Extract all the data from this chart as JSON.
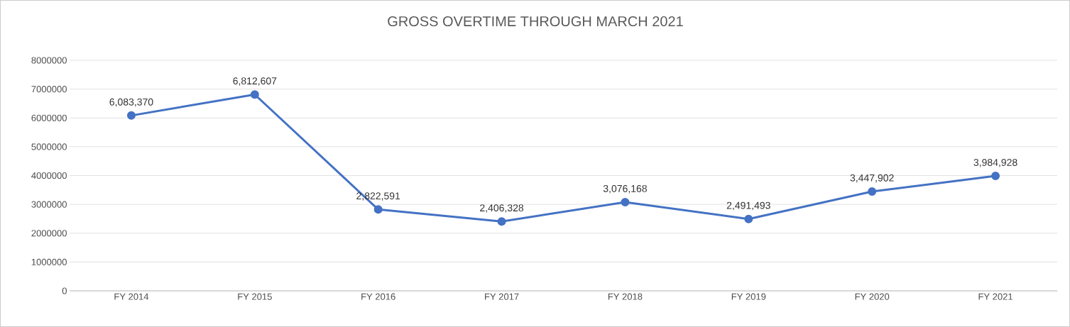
{
  "chart_data": {
    "type": "line",
    "title": "GROSS OVERTIME THROUGH MARCH 2021",
    "categories": [
      "FY 2014",
      "FY 2015",
      "FY 2016",
      "FY 2017",
      "FY 2018",
      "FY 2019",
      "FY 2020",
      "FY 2021"
    ],
    "values": [
      6083370,
      6812607,
      2822591,
      2406328,
      3076168,
      2491493,
      3447902,
      3984928
    ],
    "value_labels": [
      "6,083,370",
      "6,812,607",
      "2,822,591",
      "2,406,328",
      "3,076,168",
      "2,491,493",
      "3,447,902",
      "3,984,928"
    ],
    "color": "#4472c4",
    "ylim": [
      0,
      8000000
    ],
    "yticks": [
      0,
      1000000,
      2000000,
      3000000,
      4000000,
      5000000,
      6000000,
      7000000,
      8000000
    ],
    "grid": "y",
    "marker": "circle"
  }
}
